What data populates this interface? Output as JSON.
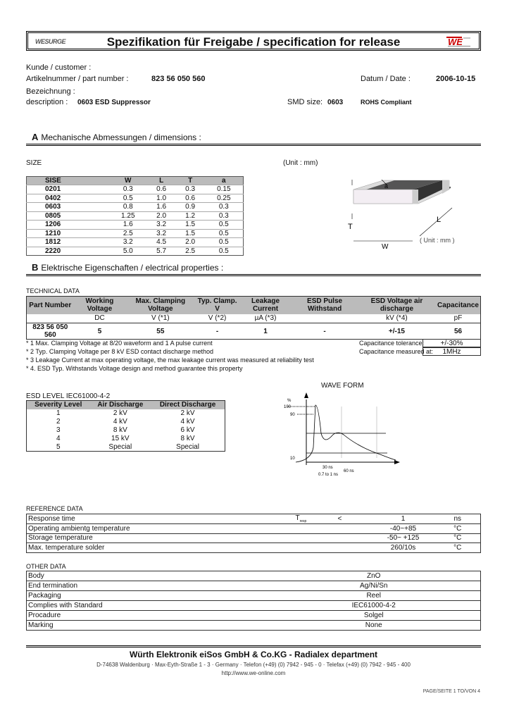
{
  "header": {
    "logo_left": "WESURGE",
    "title": "Spezifikation für Freigabe / specification for release",
    "logo_right": "WE"
  },
  "info": {
    "customer_label": "Kunde / customer :",
    "part_label": "Artikelnummer / part number :",
    "part_number": "823 56 050 560",
    "date_label": "Datum / Date :",
    "date": "2006-10-15",
    "bez_label": "Bezeichnung :",
    "desc_label": "description :",
    "description": "0603 ESD Suppressor",
    "smd_label": "SMD size:",
    "smd_size": "0603",
    "rohs": "ROHS Compliant"
  },
  "section_a": {
    "letter": "A",
    "title": "Mechanische Abmessungen / dimensions :",
    "size_label": "SIZE",
    "unit": "(Unit : mm)",
    "drawing_unit": "( Unit : mm )",
    "drawing_labels": {
      "a": "a",
      "L": "L",
      "T": "T",
      "W": "W"
    },
    "columns": [
      "SISE",
      "W",
      "L",
      "T",
      "a"
    ],
    "rows": [
      [
        "0201",
        "0.3",
        "0.6",
        "0.3",
        "0.15"
      ],
      [
        "0402",
        "0.5",
        "1.0",
        "0.6",
        "0.25"
      ],
      [
        "0603",
        "0.8",
        "1.6",
        "0.9",
        "0.3"
      ],
      [
        "0805",
        "1.25",
        "2.0",
        "1.2",
        "0.3"
      ],
      [
        "1206",
        "1.6",
        "3.2",
        "1.5",
        "0.5"
      ],
      [
        "1210",
        "2.5",
        "3.2",
        "1.5",
        "0.5"
      ],
      [
        "1812",
        "3.2",
        "4.5",
        "2.0",
        "0.5"
      ],
      [
        "2220",
        "5.0",
        "5.7",
        "2.5",
        "0.5"
      ]
    ]
  },
  "section_b": {
    "letter": "B",
    "title": "Elektrische Eigenschaften  /  electrical properties :"
  },
  "technical": {
    "label": "TECHNICAL  DATA",
    "headers": [
      "Part Number",
      "Working Voltage",
      "Max. Clamping Voltage",
      "Typ. Clamp. V",
      "Leakage Current",
      "ESD Pulse Withstand",
      "ESD Voltage air discharge",
      "Capacitance"
    ],
    "units": [
      "",
      "DC",
      "V (*1)",
      "V (*2)",
      "µA (*3)",
      "",
      "kV (*4)",
      "pF"
    ],
    "values": [
      "823 56 050 560",
      "5",
      "55",
      "-",
      "1",
      "-",
      "+/-15",
      "56"
    ],
    "notes": [
      "* 1 Max. Clamping Voltage at 8/20 waveform and 1 A pulse current",
      "* 2 Typ. Clamping Voltage per 8 kV ESD contact discharge method",
      "* 3 Leakage Current at max operating voltage, the max leakage current was measured at reliability test",
      "* 4. ESD Typ. Withstands Voltage design and method guarantee this property"
    ],
    "cap_tol_label": "Capacitance tolerance:",
    "cap_tol": "+/-30%",
    "cap_meas_label": "Capacitance measured at:",
    "cap_meas": "1MHz"
  },
  "esd": {
    "label": "ESD LEVEL IEC61000-4-2",
    "headers": [
      "Severity Level",
      "Air Discharge",
      "Direct Discharge"
    ],
    "rows": [
      [
        "1",
        "2 kV",
        "2 kV"
      ],
      [
        "2",
        "4 kV",
        "4 kV"
      ],
      [
        "3",
        "8 kV",
        "6 kV"
      ],
      [
        "4",
        "15 kV",
        "8 kV"
      ],
      [
        "5",
        "Special",
        "Special"
      ]
    ]
  },
  "waveform": {
    "title": "WAVE FORM",
    "y_unit": "%",
    "y100": "100",
    "y90": "90",
    "y10": "10",
    "t1": "30 ns",
    "t2": "60 ns",
    "tr": "0.7 to 1 ns"
  },
  "reference": {
    "label": "REFERENCE DATA",
    "rows": [
      [
        "Response time",
        "T",
        "< ",
        "1",
        "ns"
      ],
      [
        "Operating ambientg temperature",
        "",
        "",
        "-40~+85",
        "°C"
      ],
      [
        "Storage temperature",
        "",
        "",
        "-50~ +125",
        "°C"
      ],
      [
        "Max. temperature solder",
        "",
        "",
        "260/10s",
        "°C"
      ]
    ],
    "t_sub": "resp"
  },
  "other": {
    "label": "OTHER DATA",
    "rows": [
      [
        "Body",
        "ZnO"
      ],
      [
        "End termination",
        "Ag/Ni/Sn"
      ],
      [
        "Packaging",
        "Reel"
      ],
      [
        "Complies with Standard",
        "IEC61000-4-2"
      ],
      [
        "Procadure",
        "Solgel"
      ],
      [
        "Marking",
        "None"
      ]
    ]
  },
  "footer": {
    "company": "Würth Elektronik eiSos GmbH & Co.KG - Radialex department",
    "address": "D-74638 Waldenburg · Max-Eyth-Straße 1 - 3 · Germany · Telefon (+49) (0) 7942 - 945 - 0 · Telefax (+49) (0) 7942 - 945 - 400",
    "url": "http://www.we-online.com",
    "page": "PAGE/SEITE 1 TO/VON 4"
  }
}
